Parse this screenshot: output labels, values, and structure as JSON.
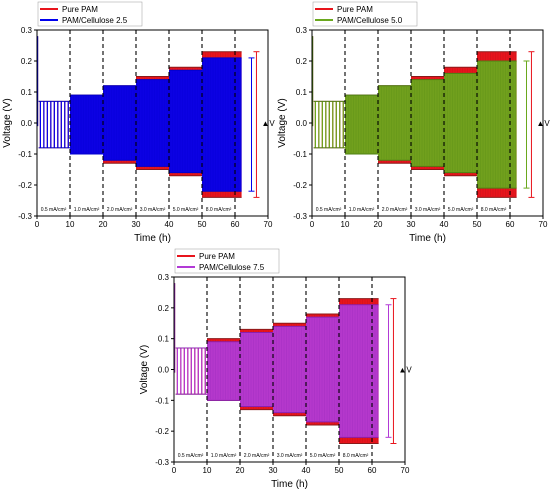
{
  "chart_data": [
    {
      "type": "line",
      "xlabel": "Time (h)",
      "ylabel": "Voltage (V)",
      "xlim": [
        0,
        70
      ],
      "ylim": [
        -0.3,
        0.3
      ],
      "xticks": [
        0,
        10,
        20,
        30,
        40,
        50,
        60,
        70
      ],
      "yticks": [
        -0.3,
        -0.2,
        -0.1,
        0.0,
        0.1,
        0.2,
        0.3
      ],
      "ytick_labels": [
        "-0.3",
        "-0.2",
        "-0.1",
        "0.0",
        "0.1",
        "0.2",
        "0.3"
      ],
      "grid": false,
      "legend_position": "top-left",
      "segment_boundaries": [
        10,
        20,
        30,
        40,
        50,
        60
      ],
      "current_density_labels": [
        "0.5 mA/cm²",
        "1.0 mA/cm²",
        "2.0 mA/cm²",
        "3.0 mA/cm²",
        "5.0 mA/cm²",
        "8.0 mA/cm²"
      ],
      "annotation": "▲V",
      "series": [
        {
          "name": "Pure PAM",
          "color": "#e8141c",
          "edge_color": "#8b1a1a",
          "segments": [
            {
              "x": [
                0.5,
                10
              ],
              "upper": 0.07,
              "lower": -0.08
            },
            {
              "x": [
                10,
                20
              ],
              "upper": 0.09,
              "lower": -0.1
            },
            {
              "x": [
                20,
                30
              ],
              "upper": 0.12,
              "lower": -0.13
            },
            {
              "x": [
                30,
                40
              ],
              "upper": 0.15,
              "lower": -0.15
            },
            {
              "x": [
                40,
                50
              ],
              "upper": 0.18,
              "lower": -0.17
            },
            {
              "x": [
                50,
                62
              ],
              "upper": 0.23,
              "lower": -0.24
            }
          ]
        },
        {
          "name": "PAM/Cellulose 2.5",
          "color": "#0000ee",
          "edge_color": "#0000cc",
          "segments": [
            {
              "x": [
                0.5,
                10
              ],
              "upper": 0.07,
              "lower": -0.08
            },
            {
              "x": [
                10,
                20
              ],
              "upper": 0.09,
              "lower": -0.1
            },
            {
              "x": [
                20,
                30
              ],
              "upper": 0.12,
              "lower": -0.12
            },
            {
              "x": [
                30,
                40
              ],
              "upper": 0.14,
              "lower": -0.14
            },
            {
              "x": [
                40,
                50
              ],
              "upper": 0.17,
              "lower": -0.16
            },
            {
              "x": [
                50,
                62
              ],
              "upper": 0.21,
              "lower": -0.22
            }
          ]
        }
      ]
    },
    {
      "type": "line",
      "xlabel": "Time (h)",
      "ylabel": "Voltage (V)",
      "xlim": [
        0,
        70
      ],
      "ylim": [
        -0.3,
        0.3
      ],
      "xticks": [
        0,
        10,
        20,
        30,
        40,
        50,
        60,
        70
      ],
      "yticks": [
        -0.3,
        -0.2,
        -0.1,
        0.0,
        0.1,
        0.2,
        0.3
      ],
      "ytick_labels": [
        "-0.3",
        "-0.2",
        "-0.1",
        "0.0",
        "0.1",
        "0.2",
        "0.3"
      ],
      "grid": false,
      "legend_position": "top-left",
      "segment_boundaries": [
        10,
        20,
        30,
        40,
        50,
        60
      ],
      "current_density_labels": [
        "0.5 mA/cm²",
        "1.0 mA/cm²",
        "2.0 mA/cm²",
        "3.0 mA/cm²",
        "5.0 mA/cm²",
        "8.0 mA/cm²"
      ],
      "annotation": "▲V",
      "series": [
        {
          "name": "Pure PAM",
          "color": "#e8141c",
          "edge_color": "#8b1a1a",
          "segments": [
            {
              "x": [
                0.5,
                10
              ],
              "upper": 0.07,
              "lower": -0.08
            },
            {
              "x": [
                10,
                20
              ],
              "upper": 0.09,
              "lower": -0.1
            },
            {
              "x": [
                20,
                30
              ],
              "upper": 0.12,
              "lower": -0.13
            },
            {
              "x": [
                30,
                40
              ],
              "upper": 0.15,
              "lower": -0.15
            },
            {
              "x": [
                40,
                50
              ],
              "upper": 0.18,
              "lower": -0.17
            },
            {
              "x": [
                50,
                62
              ],
              "upper": 0.23,
              "lower": -0.24
            }
          ]
        },
        {
          "name": "PAM/Cellulose 5.0",
          "color": "#6aa81e",
          "edge_color": "#4d7f12",
          "segments": [
            {
              "x": [
                0.5,
                10
              ],
              "upper": 0.07,
              "lower": -0.08
            },
            {
              "x": [
                10,
                20
              ],
              "upper": 0.09,
              "lower": -0.1
            },
            {
              "x": [
                20,
                30
              ],
              "upper": 0.12,
              "lower": -0.12
            },
            {
              "x": [
                30,
                40
              ],
              "upper": 0.14,
              "lower": -0.14
            },
            {
              "x": [
                40,
                50
              ],
              "upper": 0.16,
              "lower": -0.16
            },
            {
              "x": [
                50,
                62
              ],
              "upper": 0.2,
              "lower": -0.21
            }
          ]
        }
      ]
    },
    {
      "type": "line",
      "xlabel": "Time (h)",
      "ylabel": "Voltage (V)",
      "xlim": [
        0,
        70
      ],
      "ylim": [
        -0.3,
        0.3
      ],
      "xticks": [
        0,
        10,
        20,
        30,
        40,
        50,
        60,
        70
      ],
      "yticks": [
        -0.3,
        -0.2,
        -0.1,
        0.0,
        0.1,
        0.2,
        0.3
      ],
      "ytick_labels": [
        "-0.3",
        "-0.2",
        "-0.1",
        "0.0",
        "0.1",
        "0.2",
        "0.3"
      ],
      "grid": false,
      "legend_position": "top-left",
      "segment_boundaries": [
        10,
        20,
        30,
        40,
        50,
        60
      ],
      "current_density_labels": [
        "0.5 mA/cm²",
        "1.0 mA/cm²",
        "2.0 mA/cm²",
        "3.0 mA/cm²",
        "5.0 mA/cm²",
        "8.0 mA/cm²"
      ],
      "annotation": "▲V",
      "series": [
        {
          "name": "Pure PAM",
          "color": "#e8141c",
          "edge_color": "#8b1a1a",
          "segments": [
            {
              "x": [
                0.5,
                10
              ],
              "upper": 0.07,
              "lower": -0.08
            },
            {
              "x": [
                10,
                20
              ],
              "upper": 0.1,
              "lower": -0.1
            },
            {
              "x": [
                20,
                30
              ],
              "upper": 0.13,
              "lower": -0.13
            },
            {
              "x": [
                30,
                40
              ],
              "upper": 0.15,
              "lower": -0.15
            },
            {
              "x": [
                40,
                50
              ],
              "upper": 0.18,
              "lower": -0.18
            },
            {
              "x": [
                50,
                62
              ],
              "upper": 0.23,
              "lower": -0.24
            }
          ]
        },
        {
          "name": "PAM/Cellulose 7.5",
          "color": "#b23ad6",
          "edge_color": "#8a1fb0",
          "segments": [
            {
              "x": [
                0.5,
                10
              ],
              "upper": 0.07,
              "lower": -0.08
            },
            {
              "x": [
                10,
                20
              ],
              "upper": 0.09,
              "lower": -0.1
            },
            {
              "x": [
                20,
                30
              ],
              "upper": 0.12,
              "lower": -0.12
            },
            {
              "x": [
                30,
                40
              ],
              "upper": 0.14,
              "lower": -0.14
            },
            {
              "x": [
                40,
                50
              ],
              "upper": 0.17,
              "lower": -0.17
            },
            {
              "x": [
                50,
                62
              ],
              "upper": 0.21,
              "lower": -0.22
            }
          ]
        }
      ]
    }
  ]
}
